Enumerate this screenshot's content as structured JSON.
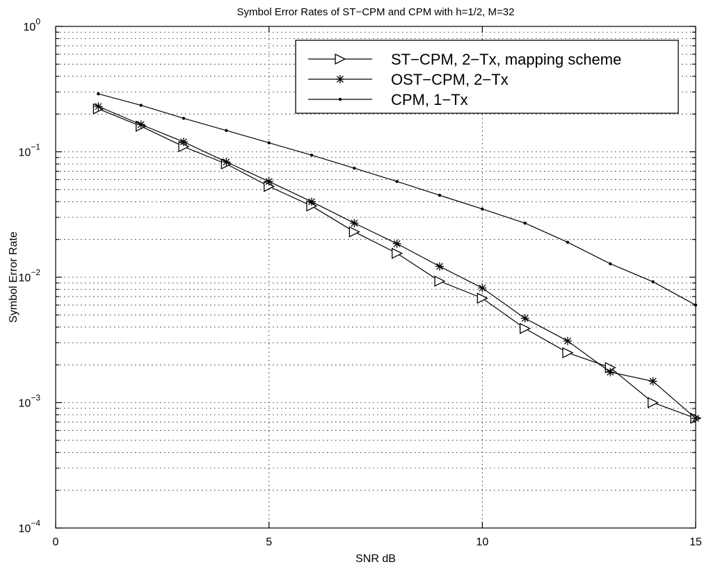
{
  "chart_data": {
    "type": "line",
    "title": "Symbol Error Rates of ST−CPM and CPM with h=1/2, M=32",
    "xlabel": "SNR dB",
    "ylabel": "Symbol Error Rate",
    "xlim": [
      0,
      15
    ],
    "ylim": [
      0.0001,
      1
    ],
    "yscale": "log",
    "grid": true,
    "legend_position": "top-right",
    "x_ticks": [
      0,
      5,
      10,
      15
    ],
    "y_ticks": [
      {
        "value": 0.0001,
        "base": "10",
        "exp": "−4"
      },
      {
        "value": 0.001,
        "base": "10",
        "exp": "−3"
      },
      {
        "value": 0.01,
        "base": "10",
        "exp": "−2"
      },
      {
        "value": 0.1,
        "base": "10",
        "exp": "−1"
      },
      {
        "value": 1,
        "base": "10",
        "exp": "0"
      }
    ],
    "x": [
      1,
      2,
      3,
      4,
      5,
      6,
      7,
      8,
      9,
      10,
      11,
      12,
      13,
      14,
      15
    ],
    "series": [
      {
        "name": "ST−CPM, 2−Tx, mapping scheme",
        "marker": "triangle-right",
        "color": "#000000",
        "values": [
          0.22,
          0.16,
          0.11,
          0.08,
          0.053,
          0.037,
          0.023,
          0.0155,
          0.0093,
          0.0068,
          0.0039,
          0.0025,
          0.0019,
          0.001,
          0.00075
        ]
      },
      {
        "name": "OST−CPM, 2−Tx",
        "marker": "star",
        "color": "#000000",
        "values": [
          0.23,
          0.165,
          0.12,
          0.083,
          0.058,
          0.04,
          0.027,
          0.0185,
          0.0122,
          0.0082,
          0.0047,
          0.0031,
          0.00175,
          0.00148,
          0.00075
        ]
      },
      {
        "name": "CPM, 1−Tx",
        "marker": "dot",
        "color": "#000000",
        "values": [
          0.29,
          0.235,
          0.185,
          0.148,
          0.118,
          0.094,
          0.074,
          0.058,
          0.045,
          0.035,
          0.027,
          0.019,
          0.0128,
          0.0092,
          0.006
        ]
      }
    ]
  }
}
